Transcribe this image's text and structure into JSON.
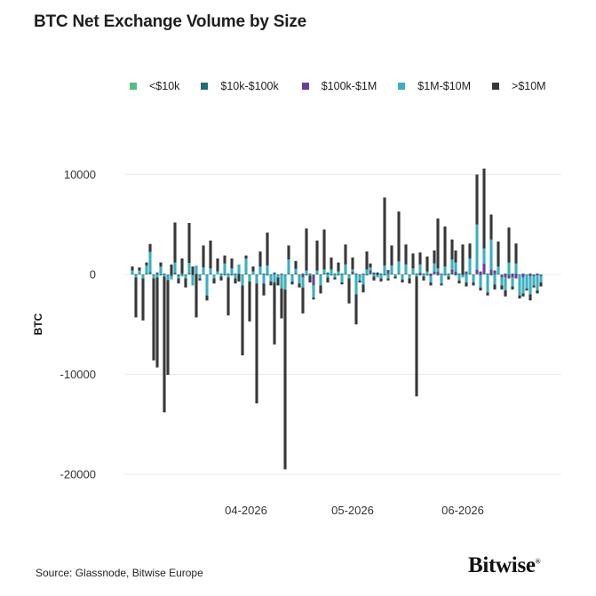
{
  "title": "BTC Net Exchange Volume by Size",
  "source": "Source: Glassnode, Bitwise Europe",
  "brand": "Bitwise",
  "brand_mark": "®",
  "colors": {
    "lt10k": "#4ec07f",
    "10k_100k": "#1f6f7a",
    "100k_1m": "#6a3f98",
    "1m_10m": "#3bb0bf",
    "gt10m": "#383838",
    "gridline": "#ebebeb"
  },
  "chart_data": {
    "type": "bar",
    "stacked": true,
    "title": "BTC Net Exchange Volume by Size",
    "xlabel": "",
    "ylabel": "BTC",
    "ylim": [
      -20000,
      12000
    ],
    "yticks": [
      10000,
      0,
      -10000,
      -20000
    ],
    "ytick_labels": [
      "10000",
      "0",
      "-10000",
      "-20000"
    ],
    "xtick_labels": [
      "04-2026",
      "05-2026",
      "06-2026"
    ],
    "xtick_dates": [
      "2026-04-01",
      "2026-05-01",
      "2026-06-01"
    ],
    "grid": true,
    "legend_position": "top",
    "dates": [
      "2026-03-01",
      "2026-03-02",
      "2026-03-03",
      "2026-03-04",
      "2026-03-05",
      "2026-03-06",
      "2026-03-07",
      "2026-03-08",
      "2026-03-09",
      "2026-03-10",
      "2026-03-11",
      "2026-03-12",
      "2026-03-13",
      "2026-03-14",
      "2026-03-15",
      "2026-03-16",
      "2026-03-17",
      "2026-03-18",
      "2026-03-19",
      "2026-03-20",
      "2026-03-21",
      "2026-03-22",
      "2026-03-23",
      "2026-03-24",
      "2026-03-25",
      "2026-03-26",
      "2026-03-27",
      "2026-03-28",
      "2026-03-29",
      "2026-03-30",
      "2026-03-31",
      "2026-04-01",
      "2026-04-02",
      "2026-04-03",
      "2026-04-04",
      "2026-04-05",
      "2026-04-06",
      "2026-04-07",
      "2026-04-08",
      "2026-04-09",
      "2026-04-10",
      "2026-04-11",
      "2026-04-12",
      "2026-04-13",
      "2026-04-14",
      "2026-04-15",
      "2026-04-16",
      "2026-04-17",
      "2026-04-18",
      "2026-04-19",
      "2026-04-20",
      "2026-04-21",
      "2026-04-22",
      "2026-04-23",
      "2026-04-24",
      "2026-04-25",
      "2026-04-26",
      "2026-04-27",
      "2026-04-28",
      "2026-04-29",
      "2026-04-30",
      "2026-05-01",
      "2026-05-02",
      "2026-05-03",
      "2026-05-04",
      "2026-05-05",
      "2026-05-06",
      "2026-05-07",
      "2026-05-08",
      "2026-05-09",
      "2026-05-10",
      "2026-05-11",
      "2026-05-12",
      "2026-05-13",
      "2026-05-14",
      "2026-05-15",
      "2026-05-16",
      "2026-05-17",
      "2026-05-18",
      "2026-05-19",
      "2026-05-20",
      "2026-05-21",
      "2026-05-22",
      "2026-05-23",
      "2026-05-24",
      "2026-05-25",
      "2026-05-26",
      "2026-05-27",
      "2026-05-28",
      "2026-05-29",
      "2026-05-30",
      "2026-05-31",
      "2026-06-01",
      "2026-06-02",
      "2026-06-03",
      "2026-06-04",
      "2026-06-05",
      "2026-06-06",
      "2026-06-07",
      "2026-06-08",
      "2026-06-09",
      "2026-06-10",
      "2026-06-11",
      "2026-06-12",
      "2026-06-13",
      "2026-06-14",
      "2026-06-15",
      "2026-06-16",
      "2026-06-17",
      "2026-06-18",
      "2026-06-19",
      "2026-06-20",
      "2026-06-21",
      "2026-06-22",
      "2026-06-23",
      "2026-06-24"
    ],
    "series": [
      {
        "name": "<$10k",
        "color_key": "lt10k",
        "values": [
          0,
          50,
          0,
          0,
          0,
          50,
          0,
          0,
          0,
          0,
          -50,
          0,
          0,
          0,
          0,
          0,
          0,
          0,
          0,
          0,
          0,
          0,
          0,
          0,
          0,
          0,
          0,
          0,
          0,
          0,
          0,
          0,
          0,
          0,
          0,
          0,
          0,
          0,
          0,
          0,
          0,
          0,
          0,
          0,
          0,
          0,
          0,
          0,
          0,
          0,
          0,
          0,
          0,
          0,
          0,
          0,
          0,
          0,
          0,
          0,
          0,
          0,
          0,
          0,
          0,
          0,
          0,
          0,
          0,
          0,
          0,
          0,
          0,
          0,
          0,
          0,
          0,
          0,
          0,
          0,
          0,
          0,
          0,
          0,
          0,
          0,
          0,
          0,
          0,
          0,
          0,
          0,
          0,
          0,
          0,
          0,
          0,
          0,
          0,
          0,
          0,
          0,
          0,
          0,
          0,
          0,
          0,
          0,
          0,
          0,
          0,
          0,
          0,
          0,
          0,
          0
        ]
      },
      {
        "name": "$10k-$100k",
        "color_key": "10k_100k",
        "values": [
          100,
          -100,
          100,
          -100,
          100,
          200,
          -100,
          200,
          -100,
          100,
          -100,
          -200,
          200,
          -100,
          100,
          -100,
          150,
          -100,
          100,
          -100,
          100,
          -100,
          100,
          0,
          0,
          100,
          -100,
          100,
          -100,
          100,
          100,
          -100,
          100,
          -100,
          100,
          -100,
          100,
          100,
          -100,
          -100,
          200,
          -100,
          100,
          -100,
          100,
          -100,
          150,
          -100,
          100,
          -100,
          100,
          -100,
          100,
          -100,
          100,
          200,
          -100,
          100,
          -100,
          100,
          100,
          -100,
          100,
          100,
          -100,
          100,
          -100,
          100,
          200,
          -100,
          100,
          -100,
          150,
          100,
          -100,
          100,
          -100,
          100,
          -100,
          100,
          100,
          -100,
          100,
          -100,
          100,
          100,
          -100,
          100,
          -100,
          100,
          200,
          -100,
          100,
          -100,
          100,
          100,
          -100,
          100,
          -100,
          100,
          100,
          -100,
          100,
          100,
          -100,
          100,
          -100,
          100,
          100,
          -100,
          100,
          -100,
          100,
          -100,
          100,
          -100
        ]
      },
      {
        "name": "$100k-$1M",
        "color_key": "100k_1m",
        "values": [
          0,
          0,
          0,
          0,
          0,
          0,
          0,
          0,
          0,
          0,
          0,
          0,
          0,
          -100,
          0,
          0,
          0,
          0,
          0,
          0,
          0,
          0,
          0,
          0,
          0,
          0,
          0,
          0,
          0,
          0,
          0,
          0,
          0,
          0,
          0,
          0,
          0,
          0,
          0,
          0,
          0,
          0,
          0,
          0,
          0,
          0,
          0,
          0,
          -300,
          0,
          0,
          -1000,
          0,
          0,
          0,
          0,
          0,
          0,
          0,
          0,
          0,
          0,
          200,
          0,
          0,
          0,
          0,
          300,
          0,
          0,
          0,
          0,
          300,
          0,
          0,
          0,
          0,
          0,
          0,
          0,
          0,
          200,
          0,
          0,
          -200,
          200,
          300,
          0,
          0,
          0,
          300,
          300,
          0,
          0,
          200,
          0,
          0,
          400,
          300,
          1000,
          0,
          500,
          300,
          0,
          -200,
          -300,
          -300,
          -300,
          -400,
          0,
          -300,
          0,
          -200,
          -100,
          -100,
          -100
        ]
      },
      {
        "name": "$1M-$10M",
        "color_key": "1m_10m",
        "values": [
          300,
          -200,
          300,
          -300,
          800,
          2000,
          -300,
          -300,
          800,
          -200,
          -400,
          -300,
          1000,
          -200,
          -200,
          -300,
          1000,
          -1000,
          800,
          -300,
          600,
          -2000,
          500,
          -400,
          300,
          -200,
          1100,
          -300,
          600,
          -400,
          900,
          -1000,
          1500,
          -600,
          200,
          -800,
          700,
          -900,
          900,
          -600,
          -800,
          -200,
          -1400,
          -1400,
          1400,
          -600,
          400,
          -800,
          -1000,
          400,
          -100,
          -1200,
          300,
          -1000,
          400,
          -300,
          500,
          -300,
          300,
          -800,
          900,
          -300,
          200,
          -2000,
          -500,
          -1000,
          500,
          300,
          -200,
          -200,
          -400,
          900,
          -400,
          800,
          -100,
          1200,
          -400,
          900,
          -300,
          500,
          -200,
          800,
          -200,
          300,
          -600,
          800,
          300,
          -900,
          800,
          -200,
          1000,
          900,
          -600,
          -200,
          -800,
          1500,
          -700,
          4500,
          -1200,
          1500,
          -1800,
          3000,
          -1000,
          700,
          -800,
          -1300,
          1200,
          -900,
          1000,
          -2000,
          -1600,
          -1300,
          -1800,
          -900,
          -1500,
          -600
        ]
      },
      {
        "name": ">$10M",
        "color_key": "gt10m",
        "values": [
          400,
          -4000,
          300,
          -4200,
          300,
          800,
          -8200,
          -9000,
          400,
          -13600,
          -9500,
          1000,
          4000,
          -500,
          1500,
          -900,
          4000,
          800,
          -4300,
          -200,
          2200,
          -500,
          2800,
          -500,
          1300,
          -400,
          800,
          -3800,
          1000,
          -500,
          -700,
          -7000,
          300,
          -4000,
          500,
          -12000,
          1500,
          -1200,
          3300,
          -400,
          -6200,
          -800,
          -3000,
          -18000,
          1400,
          -300,
          800,
          -400,
          -2600,
          4200,
          -700,
          -200,
          3000,
          -800,
          4000,
          -500,
          1200,
          -200,
          900,
          -200,
          2000,
          -2500,
          1200,
          -3000,
          -200,
          -800,
          1800,
          400,
          -400,
          200,
          -300,
          6800,
          -200,
          2000,
          -200,
          5000,
          -300,
          2000,
          -500,
          1500,
          -12000,
          1200,
          -400,
          1500,
          -300,
          1300,
          5000,
          -200,
          4000,
          -300,
          2000,
          1200,
          -300,
          3000,
          -400,
          1500,
          -300,
          5000,
          -300,
          8000,
          -300,
          2500,
          -500,
          2500,
          -400,
          -600,
          3500,
          -300,
          2000,
          -300,
          -300,
          -200,
          -600,
          -200,
          -300,
          -400
        ]
      }
    ]
  },
  "legend": [
    {
      "label": "<$10k",
      "color_key": "lt10k"
    },
    {
      "label": "$10k-$100k",
      "color_key": "10k_100k"
    },
    {
      "label": "$100k-$1M",
      "color_key": "100k_1m"
    },
    {
      "label": "$1M-$10M",
      "color_key": "1m_10m"
    },
    {
      "label": ">$10M",
      "color_key": "gt10m"
    }
  ]
}
